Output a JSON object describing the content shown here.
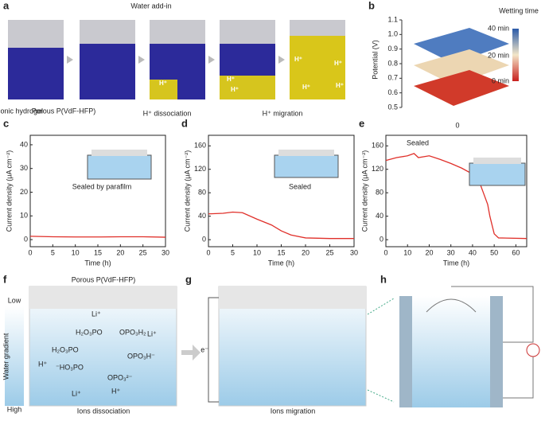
{
  "panel_a": {
    "label": "a",
    "title": "Water add-in",
    "hydrogel": "Ionic hydrogel",
    "membrane": "Porous P(VdF-HFP)",
    "step1": "H⁺ dissociation",
    "step2": "H⁺ migration",
    "ion": "H⁺"
  },
  "panel_b": {
    "label": "b",
    "zlabel": "Potential (V)",
    "zticks": [
      0.5,
      0.6,
      0.7,
      0.8,
      0.9,
      {
        "value": 1,
        "label": "1.0"
      },
      1.1
    ],
    "zlim": [
      0.5,
      1.1
    ],
    "origin": "0",
    "legend_title": "Wetting time",
    "legend_labels": [
      "40 min",
      "20 min",
      "0 min"
    ]
  },
  "chart_data": [
    {
      "type": "line",
      "label": "c",
      "annotation": "Sealed by parafilm",
      "xlabel": "Time (h)",
      "ylabel": "Current density (μA cm⁻²)",
      "x": [
        0,
        5,
        10,
        15,
        20,
        25,
        30
      ],
      "values": [
        1.4,
        1.2,
        1.1,
        1.1,
        1.2,
        1.2,
        1.0
      ],
      "color": "#e0302a",
      "xlim": [
        0,
        30
      ],
      "xticks": [
        0,
        5,
        10,
        15,
        20,
        25,
        30
      ],
      "ylim": [
        -3,
        44
      ],
      "yticks": [
        0,
        10,
        20,
        30,
        40
      ]
    },
    {
      "type": "line",
      "label": "d",
      "annotation": "Sealed",
      "xlabel": "Time (h)",
      "ylabel": "Current density (μA cm⁻²)",
      "x": [
        0,
        3,
        5,
        7,
        10,
        13,
        15,
        17,
        20,
        25,
        30
      ],
      "values": [
        44,
        45,
        47,
        46,
        35,
        25,
        15,
        8,
        3,
        2,
        2
      ],
      "color": "#e0302a",
      "xlim": [
        0,
        30
      ],
      "xticks": [
        0,
        5,
        10,
        15,
        20,
        25,
        30
      ],
      "ylim": [
        -12,
        178
      ],
      "yticks": [
        0,
        40,
        80,
        120,
        160
      ]
    },
    {
      "type": "line",
      "label": "e",
      "annotation": "Sealed",
      "xlabel": "Time (h)",
      "ylabel": "Current density (μA cm⁻²)",
      "x": [
        0,
        5,
        10,
        13,
        15,
        20,
        25,
        30,
        35,
        40,
        43,
        45,
        47,
        48,
        50,
        52,
        65
      ],
      "values": [
        135,
        140,
        143,
        147,
        140,
        143,
        137,
        130,
        122,
        112,
        100,
        80,
        60,
        40,
        10,
        3,
        2
      ],
      "color": "#e0302a",
      "xlim": [
        0,
        65
      ],
      "xticks": [
        0,
        10,
        20,
        30,
        40,
        50,
        60
      ],
      "ylim": [
        -12,
        178
      ],
      "yticks": [
        0,
        40,
        80,
        120,
        160
      ]
    }
  ],
  "panel_f": {
    "label": "f",
    "membrane": "Porous P(VdF-HFP)",
    "low": "Low",
    "high": "High",
    "gradient": "Water gradient",
    "caption": "Ions dissociation",
    "li": "Li⁺",
    "h": "H⁺",
    "g1": "H₂O₃PO",
    "g2": "OPO₃H₂",
    "g3": "H₂O₃PO",
    "g4": "OPO₃H⁻",
    "g5": "⁻HO₃PO",
    "g6": "OPO₃²⁻"
  },
  "panel_g": {
    "label": "g",
    "caption": "Ions migration",
    "electron": "e⁻"
  },
  "panel_h": {
    "label": "h"
  }
}
